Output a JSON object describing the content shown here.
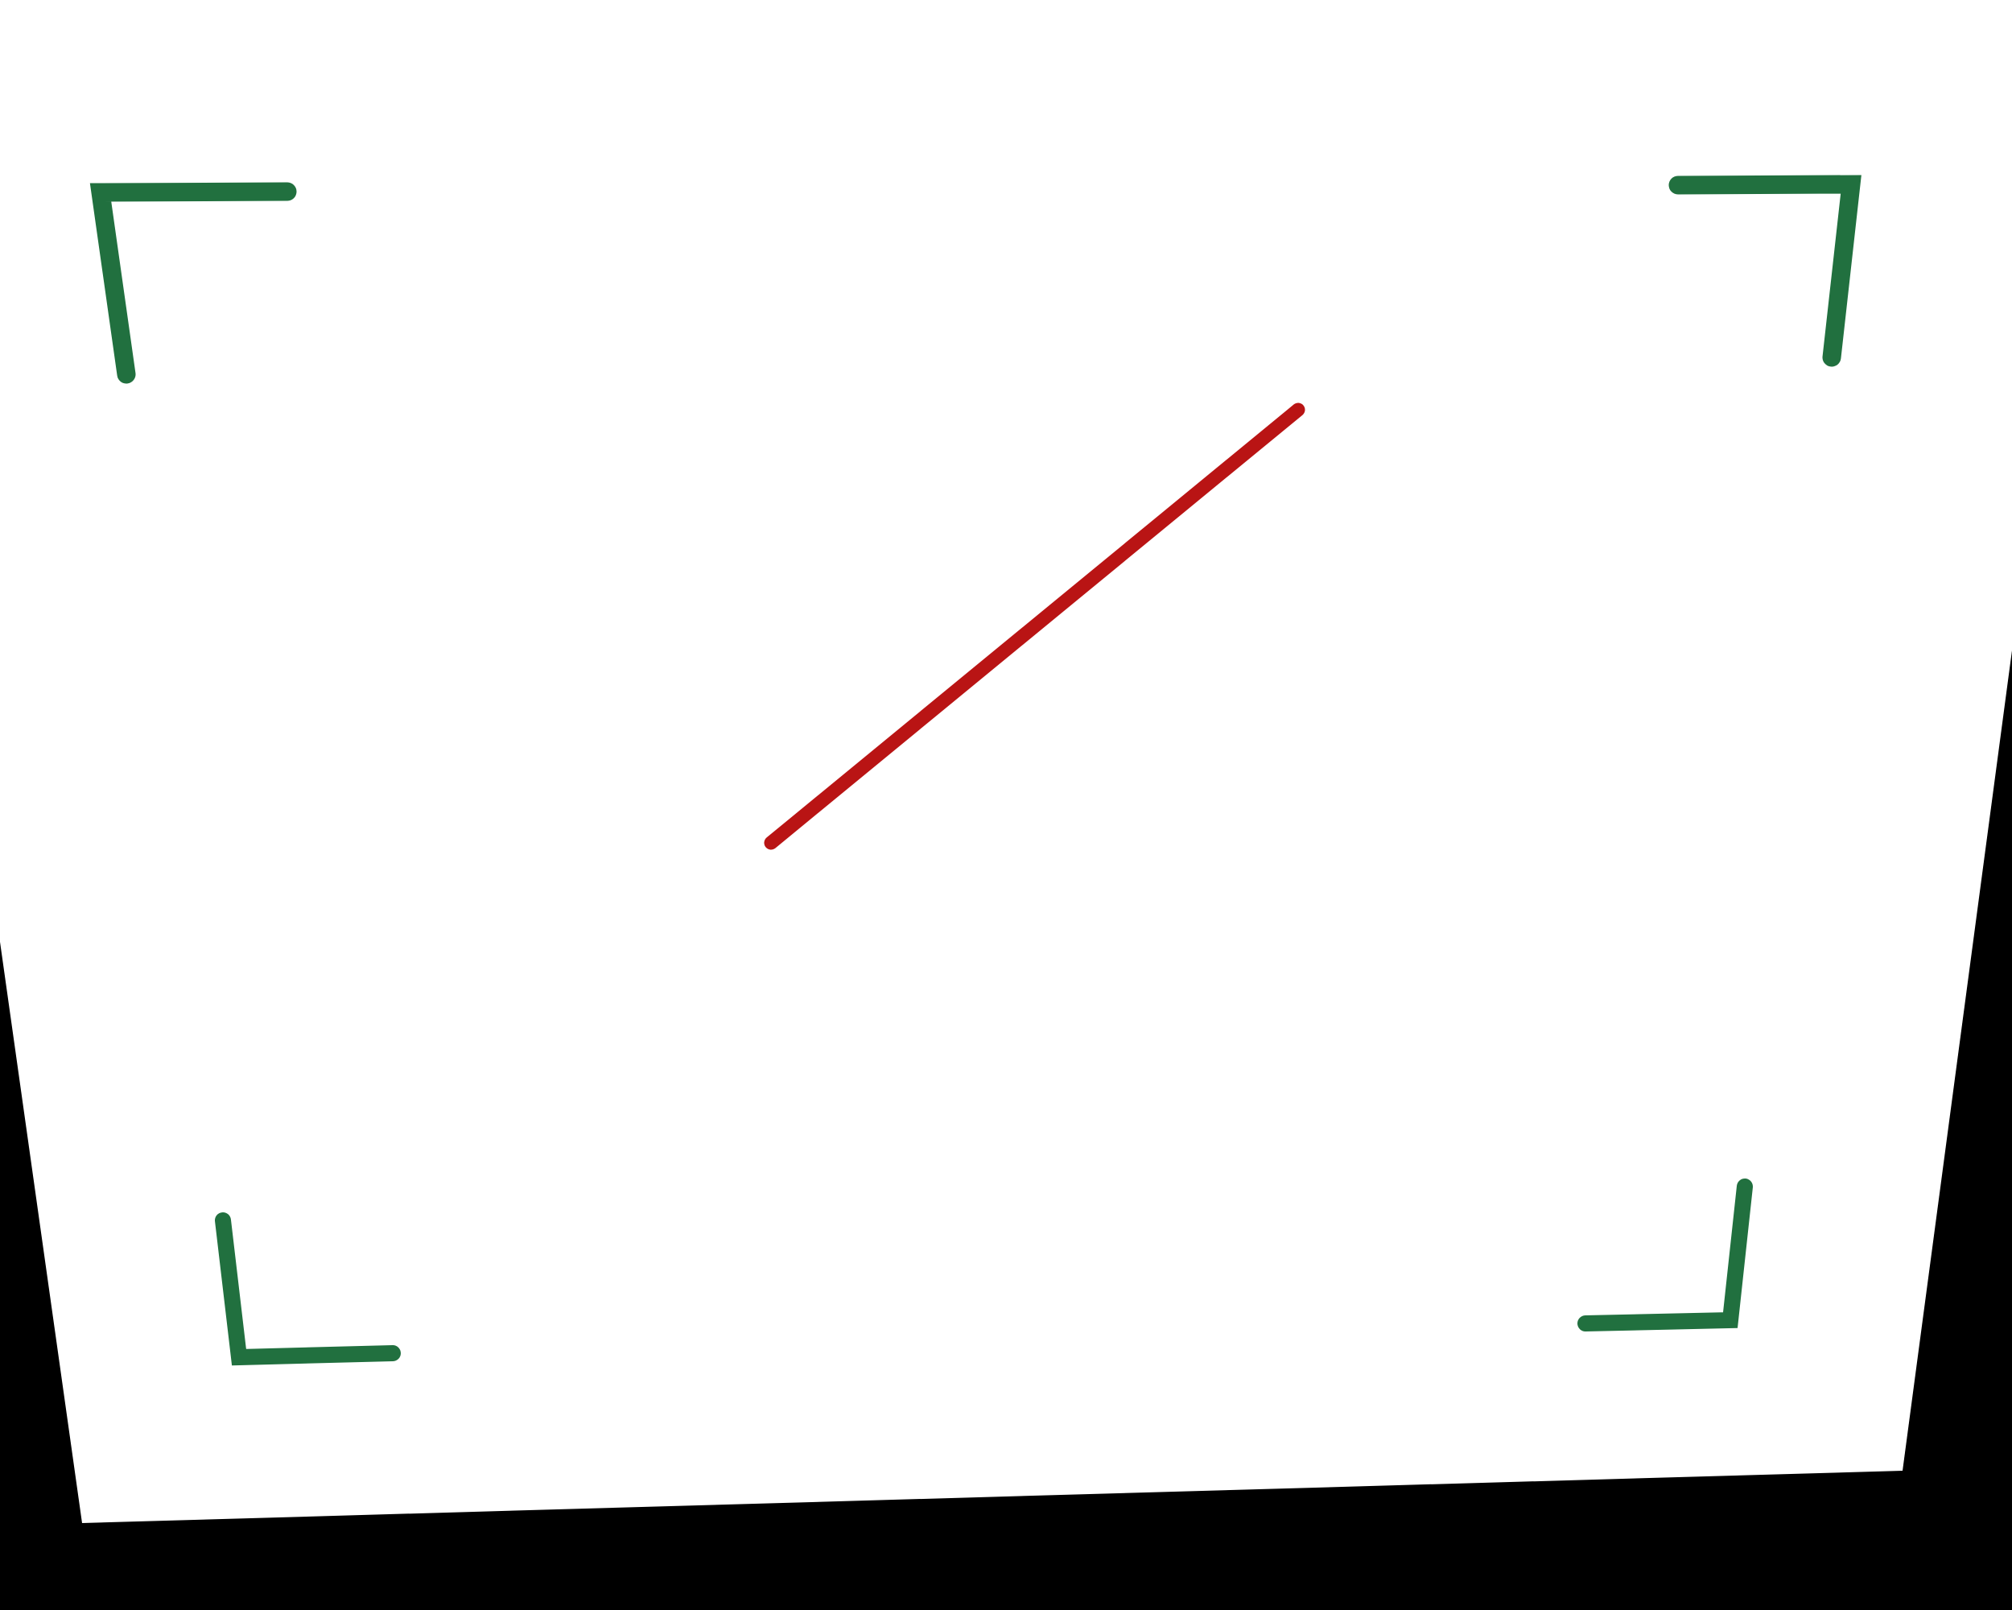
{
  "scene": {
    "description_elements": [
      "paper-sheet",
      "corner-bracket-top-left",
      "corner-bracket-top-right",
      "corner-bracket-bottom-left",
      "corner-bracket-bottom-right",
      "diagonal-line"
    ],
    "colors": {
      "background": "#000000",
      "paper": "#ffffff",
      "bracket": "#21703f",
      "line": "#b91414"
    }
  }
}
